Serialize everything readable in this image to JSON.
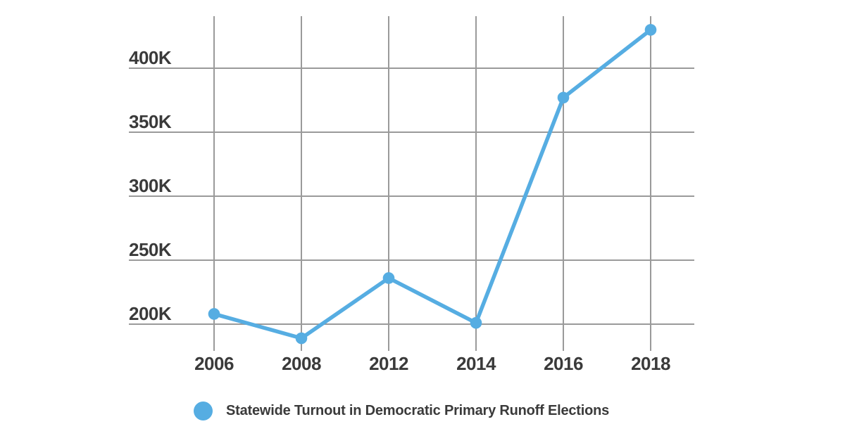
{
  "chart_data": {
    "type": "line",
    "title": "",
    "xlabel": "",
    "ylabel": "",
    "categories": [
      "2006",
      "2008",
      "2012",
      "2014",
      "2016",
      "2018"
    ],
    "series": [
      {
        "name": "Statewide Turnout in Democratic Primary Runoff Elections",
        "values": [
          208000,
          189000,
          236000,
          201000,
          377000,
          430000
        ]
      }
    ],
    "y_axis": {
      "tick_values": [
        200000,
        250000,
        300000,
        350000,
        400000
      ],
      "tick_labels": [
        "200K",
        "250K",
        "300K",
        "350K",
        "400K"
      ],
      "range": [
        179000,
        441000
      ]
    },
    "grid": true,
    "legend_position": "bottom",
    "marker_style": "filled-circle"
  },
  "colors": {
    "series_blue": "#56ADE2",
    "grid_gray": "#9A9A9A",
    "text_dark": "#3A3A3A",
    "background": "#FFFFFF"
  }
}
